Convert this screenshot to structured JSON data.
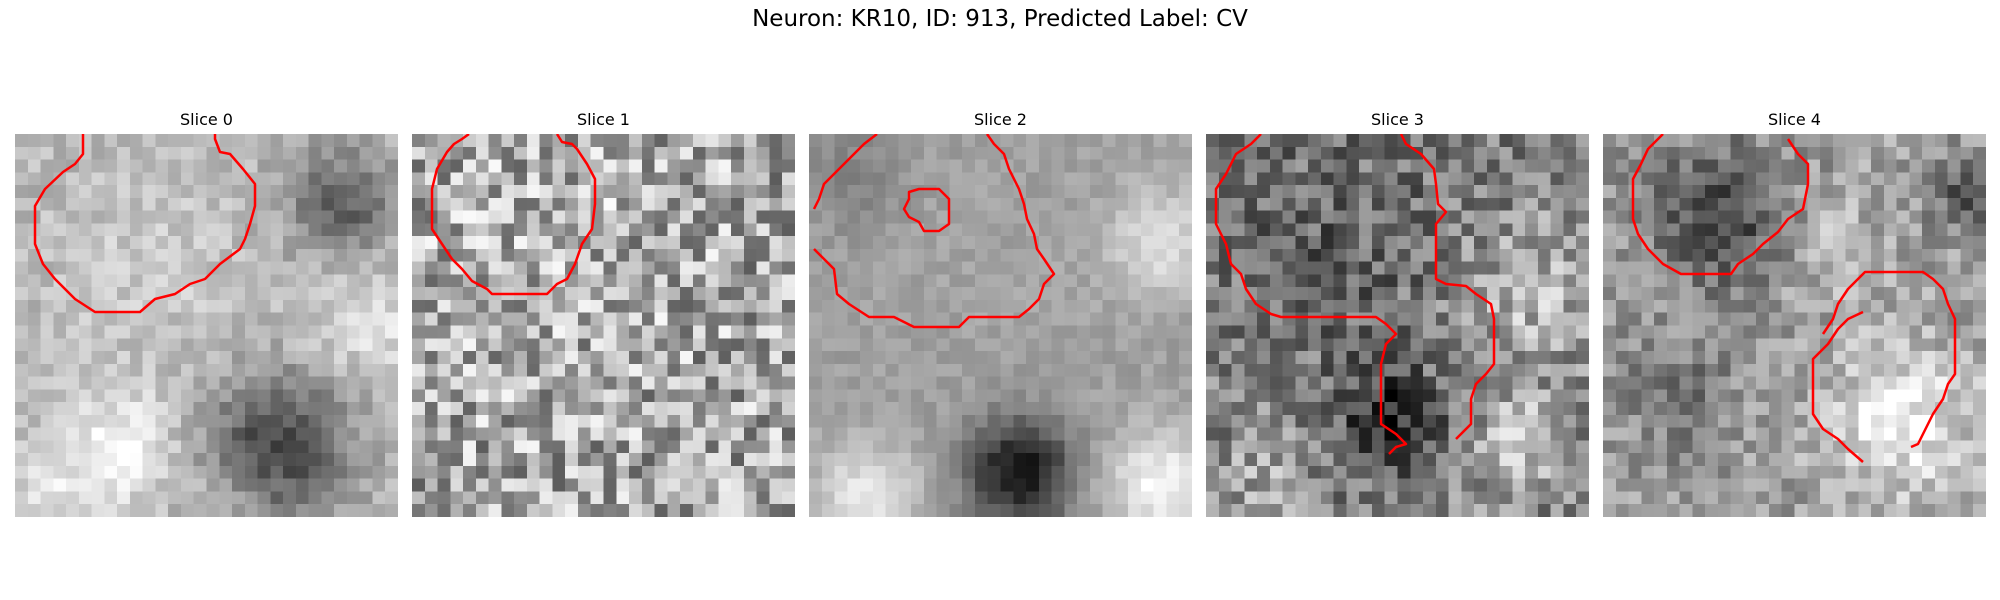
{
  "title": "Neuron: KR10, ID: 913, Predicted Label: CV",
  "panels": [
    {
      "label": "Slice 0"
    },
    {
      "label": "Slice 1"
    },
    {
      "label": "Slice 2"
    },
    {
      "label": "Slice 3"
    },
    {
      "label": "Slice 4"
    }
  ],
  "colors": {
    "contour": "#ff0000",
    "background": "#ffffff"
  }
}
